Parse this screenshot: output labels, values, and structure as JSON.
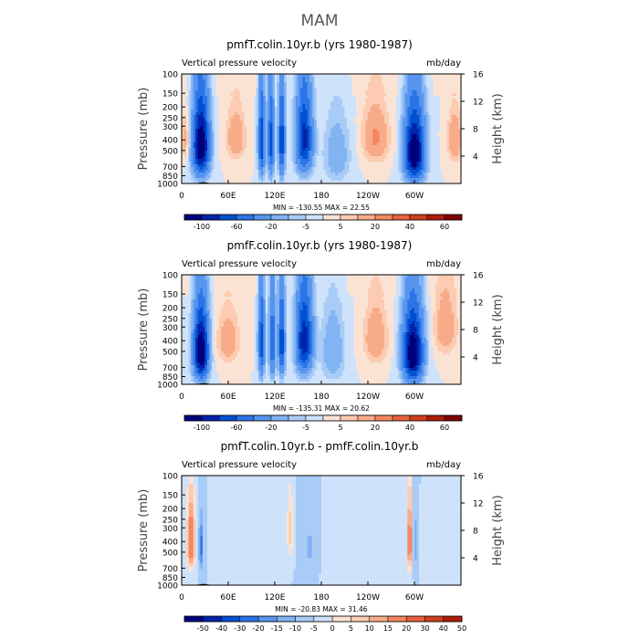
{
  "figure": {
    "title": "MAM"
  },
  "colors": {
    "cmap_top": [
      "#00007d",
      "#0023a9",
      "#0050d2",
      "#2b74e8",
      "#5795ee",
      "#82b3f3",
      "#a9ccf7",
      "#cfe2fb",
      "#fbe3d4",
      "#fccbb1",
      "#f8ab89",
      "#f38760",
      "#e8623c",
      "#cf3e1f",
      "#ad1d0a",
      "#7f0000"
    ],
    "cmap_diff": [
      "#00007d",
      "#0023a9",
      "#0050d2",
      "#2b74e8",
      "#5795ee",
      "#82b3f3",
      "#a9ccf7",
      "#cfe2fb",
      "#fbe3d4",
      "#fccbb1",
      "#f8ab89",
      "#f38760",
      "#e8623c",
      "#cf3e1f",
      "#ad1d0a",
      "#7f0000"
    ]
  },
  "chart_data": [
    {
      "type": "heatmap",
      "title": "pmfT.colin.10yr.b (yrs 1980-1987)",
      "left_label": "Vertical pressure velocity",
      "right_label": "mb/day",
      "ylabel": "Pressure (mb)",
      "ylabel_right": "Height (km)",
      "yticks": [
        "100",
        "150",
        "200",
        "250",
        "300",
        "400",
        "500",
        "700",
        "850",
        "1000"
      ],
      "ytick_values": [
        100,
        150,
        200,
        250,
        300,
        400,
        500,
        700,
        850,
        1000
      ],
      "ylim": [
        1000,
        100
      ],
      "xticks": [
        "0",
        "60E",
        "120E",
        "180",
        "120W",
        "60W"
      ],
      "xtick_values": [
        0,
        60,
        120,
        180,
        240,
        300
      ],
      "xlim": [
        0,
        360
      ],
      "height_ticks": [
        "4",
        "8",
        "12",
        "16"
      ],
      "height_values": [
        4,
        8,
        12,
        16
      ],
      "stats": "MIN = -130.55   MAX =  22.55",
      "colorbar_labels": [
        "-100",
        "-60",
        "-20",
        "-5",
        "5",
        "20",
        "40",
        "60"
      ],
      "colorbar_levels": [
        -120,
        -100,
        -80,
        -60,
        -40,
        -20,
        -10,
        -5,
        0,
        5,
        10,
        20,
        30,
        40,
        50,
        60
      ],
      "features": [
        {
          "lon": 25,
          "p": 450,
          "amp": -125,
          "sx": 10,
          "sp": 340
        },
        {
          "lon": 70,
          "p": 380,
          "amp": 18,
          "sx": 12,
          "sp": 200
        },
        {
          "lon": 103,
          "p": 420,
          "amp": -75,
          "sx": 4,
          "sp": 360
        },
        {
          "lon": 115,
          "p": 420,
          "amp": -70,
          "sx": 4,
          "sp": 360
        },
        {
          "lon": 129,
          "p": 420,
          "amp": -78,
          "sx": 4,
          "sp": 360
        },
        {
          "lon": 158,
          "p": 400,
          "amp": -90,
          "sx": 10,
          "sp": 330
        },
        {
          "lon": 200,
          "p": 550,
          "amp": -18,
          "sx": 16,
          "sp": 350
        },
        {
          "lon": 250,
          "p": 380,
          "amp": 22,
          "sx": 16,
          "sp": 220
        },
        {
          "lon": 300,
          "p": 520,
          "amp": -128,
          "sx": 12,
          "sp": 360
        },
        {
          "lon": 352,
          "p": 400,
          "amp": 20,
          "sx": 9,
          "sp": 200
        },
        {
          "lon": 5,
          "p": 400,
          "amp": 14,
          "sx": 6,
          "sp": 180
        }
      ]
    },
    {
      "type": "heatmap",
      "title": "pmfF.colin.10yr.b (yrs 1980-1987)",
      "left_label": "Vertical pressure velocity",
      "right_label": "mb/day",
      "ylabel": "Pressure (mb)",
      "ylabel_right": "Height (km)",
      "yticks": [
        "100",
        "150",
        "200",
        "250",
        "300",
        "400",
        "500",
        "700",
        "850",
        "1000"
      ],
      "ytick_values": [
        100,
        150,
        200,
        250,
        300,
        400,
        500,
        700,
        850,
        1000
      ],
      "ylim": [
        1000,
        100
      ],
      "xticks": [
        "0",
        "60E",
        "120E",
        "180",
        "120W",
        "60W"
      ],
      "xtick_values": [
        0,
        60,
        120,
        180,
        240,
        300
      ],
      "xlim": [
        0,
        360
      ],
      "height_ticks": [
        "4",
        "8",
        "12",
        "16"
      ],
      "height_values": [
        4,
        8,
        12,
        16
      ],
      "stats": "MIN = -135.31   MAX =  20.62",
      "colorbar_labels": [
        "-100",
        "-60",
        "-20",
        "-5",
        "5",
        "20",
        "40",
        "60"
      ],
      "colorbar_levels": [
        -120,
        -100,
        -80,
        -60,
        -40,
        -20,
        -10,
        -5,
        0,
        5,
        10,
        20,
        30,
        40,
        50,
        60
      ],
      "features": [
        {
          "lon": 25,
          "p": 500,
          "amp": -130,
          "sx": 9,
          "sp": 340
        },
        {
          "lon": 60,
          "p": 400,
          "amp": 16,
          "sx": 14,
          "sp": 220
        },
        {
          "lon": 103,
          "p": 420,
          "amp": -70,
          "sx": 4,
          "sp": 360
        },
        {
          "lon": 117,
          "p": 420,
          "amp": -60,
          "sx": 4,
          "sp": 360
        },
        {
          "lon": 129,
          "p": 420,
          "amp": -75,
          "sx": 4,
          "sp": 360
        },
        {
          "lon": 158,
          "p": 400,
          "amp": -95,
          "sx": 10,
          "sp": 330
        },
        {
          "lon": 195,
          "p": 500,
          "amp": -20,
          "sx": 14,
          "sp": 350
        },
        {
          "lon": 250,
          "p": 380,
          "amp": 20,
          "sx": 14,
          "sp": 220
        },
        {
          "lon": 298,
          "p": 520,
          "amp": -130,
          "sx": 12,
          "sp": 360
        },
        {
          "lon": 340,
          "p": 300,
          "amp": 18,
          "sx": 14,
          "sp": 200
        }
      ]
    },
    {
      "type": "heatmap",
      "title": "pmfT.colin.10yr.b - pmfF.colin.10yr.b",
      "left_label": "Vertical pressure velocity",
      "right_label": "mb/day",
      "ylabel": "Pressure (mb)",
      "ylabel_right": "Height (km)",
      "yticks": [
        "100",
        "150",
        "200",
        "250",
        "300",
        "400",
        "500",
        "700",
        "850",
        "1000"
      ],
      "ytick_values": [
        100,
        150,
        200,
        250,
        300,
        400,
        500,
        700,
        850,
        1000
      ],
      "ylim": [
        1000,
        100
      ],
      "xticks": [
        "0",
        "60E",
        "120E",
        "180",
        "120W",
        "60W"
      ],
      "xtick_values": [
        0,
        60,
        120,
        180,
        240,
        300
      ],
      "xlim": [
        0,
        360
      ],
      "height_ticks": [
        "4",
        "8",
        "12",
        "16"
      ],
      "height_values": [
        4,
        8,
        12,
        16
      ],
      "stats": "MIN = -20.83   MAX =  31.46",
      "colorbar_labels": [
        "-50",
        "-40",
        "-30",
        "-20",
        "-15",
        "-10",
        "-5",
        "0",
        "5",
        "10",
        "15",
        "20",
        "30",
        "40",
        "50"
      ],
      "colorbar_levels": [
        -50,
        -40,
        -30,
        -20,
        -15,
        -10,
        -5,
        0,
        5,
        10,
        15,
        20,
        30,
        40,
        50
      ],
      "features": [
        {
          "lon": 12,
          "p": 400,
          "amp": 30,
          "sx": 5,
          "sp": 280
        },
        {
          "lon": 25,
          "p": 450,
          "amp": -18,
          "sx": 3,
          "sp": 220
        },
        {
          "lon": 85,
          "p": 500,
          "amp": 5,
          "sx": 20,
          "sp": 300
        },
        {
          "lon": 140,
          "p": 320,
          "amp": 14,
          "sx": 4,
          "sp": 200
        },
        {
          "lon": 165,
          "p": 450,
          "amp": -6,
          "sx": 10,
          "sp": 260
        },
        {
          "lon": 215,
          "p": 500,
          "amp": 4,
          "sx": 25,
          "sp": 300
        },
        {
          "lon": 294,
          "p": 400,
          "amp": 30,
          "sx": 3,
          "sp": 300
        },
        {
          "lon": 300,
          "p": 420,
          "amp": -10,
          "sx": 3,
          "sp": 250
        },
        {
          "lon": 335,
          "p": 450,
          "amp": 5,
          "sx": 12,
          "sp": 250
        }
      ]
    }
  ]
}
